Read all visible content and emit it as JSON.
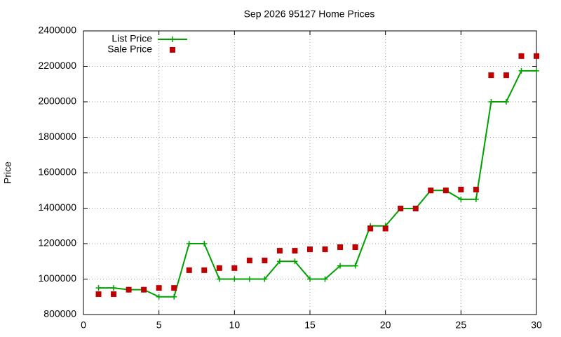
{
  "chart_data": {
    "type": "line",
    "title": "Sep 2026 95127 Home Prices",
    "y_label": "Price",
    "x": [
      1,
      2,
      3,
      4,
      5,
      6,
      7,
      8,
      9,
      10,
      11,
      12,
      13,
      14,
      15,
      16,
      17,
      18,
      19,
      20,
      21,
      22,
      23,
      24,
      25,
      26,
      27,
      28,
      29,
      30
    ],
    "series": [
      {
        "name": "List Price",
        "color": "#00a000",
        "style": "linespoints",
        "values": [
          950000,
          950000,
          940000,
          940000,
          900000,
          900000,
          1200000,
          1200000,
          1000000,
          1000000,
          1000000,
          1000000,
          1100000,
          1100000,
          1000000,
          1000000,
          1075000,
          1075000,
          1300000,
          1300000,
          1398000,
          1398000,
          1500000,
          1500000,
          1450000,
          1450000,
          2000000,
          2000000,
          2175000,
          2175000
        ]
      },
      {
        "name": "Sale Price",
        "color": "#c00000",
        "style": "points",
        "values": [
          915000,
          915000,
          940000,
          940000,
          950000,
          950000,
          1050000,
          1050000,
          1062000,
          1062000,
          1105000,
          1105000,
          1160000,
          1160000,
          1168000,
          1168000,
          1180000,
          1180000,
          1285000,
          1285000,
          1398000,
          1398000,
          1500000,
          1500000,
          1505000,
          1505000,
          2150000,
          2150000,
          2258000,
          2258000
        ]
      }
    ],
    "xlim": [
      0,
      30
    ],
    "xticks": [
      0,
      5,
      10,
      15,
      20,
      25,
      30
    ],
    "ylim": [
      800000,
      2400000
    ],
    "yticks": [
      800000,
      1000000,
      1200000,
      1400000,
      1600000,
      1800000,
      2000000,
      2200000,
      2400000
    ],
    "grid": true,
    "legend": "top-left"
  }
}
